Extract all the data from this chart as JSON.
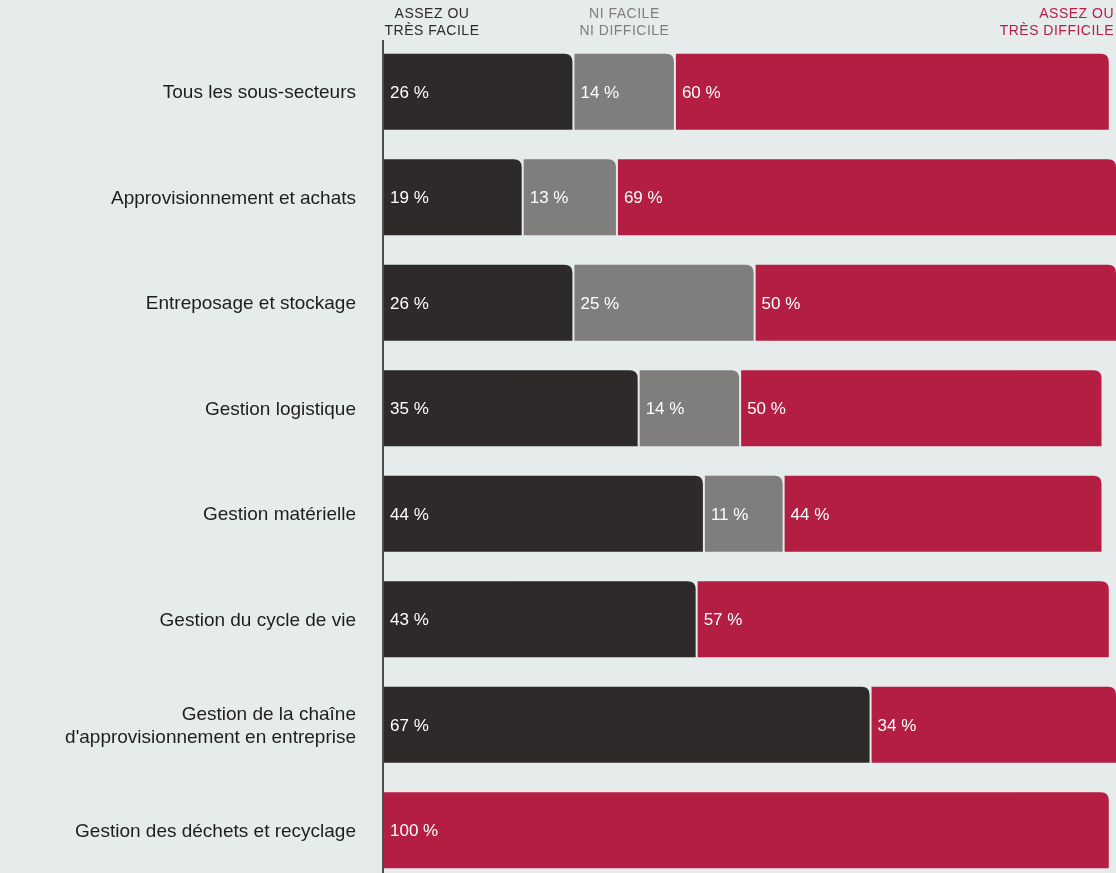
{
  "chart_data": {
    "type": "bar",
    "orientation": "horizontal",
    "stacked": true,
    "legend": "top",
    "tick_labels": "y",
    "xlim": [
      0,
      101
    ],
    "categories": [
      "Tous les sous-secteurs",
      "Approvisionnement et achats",
      "Entreposage et stockage",
      "Gestion logistique",
      "Gestion matérielle",
      "Gestion du cycle de vie",
      "Gestion de la chaîne d'approvisionnement en entreprise",
      "Gestion des déchets et recyclage"
    ],
    "series": [
      {
        "name": "ASSEZ OU TRÈS FACILE",
        "color": "#2d2a29",
        "values": [
          26,
          19,
          26,
          35,
          44,
          43,
          67,
          null
        ],
        "value_labels": [
          "26 %",
          "19 %",
          "26 %",
          "35 %",
          "44 %",
          "43 %",
          "67 %",
          null
        ]
      },
      {
        "name": "NI FACILE NI DIFFICILE",
        "color": "#807e7c",
        "values": [
          14,
          13,
          25,
          14,
          11,
          null,
          null,
          null
        ],
        "value_labels": [
          "14 %",
          "13 %",
          "25 %",
          "14 %",
          "11 %",
          null,
          null,
          null
        ]
      },
      {
        "name": "ASSEZ OU TRÈS DIFFICILE",
        "color": "#b31e42",
        "values": [
          60,
          69,
          50,
          50,
          44,
          57,
          34,
          100
        ],
        "value_labels": [
          "60 %",
          "69 %",
          "50 %",
          "50 %",
          "44 %",
          "57 %",
          "34 %",
          "100 %"
        ]
      }
    ]
  }
}
